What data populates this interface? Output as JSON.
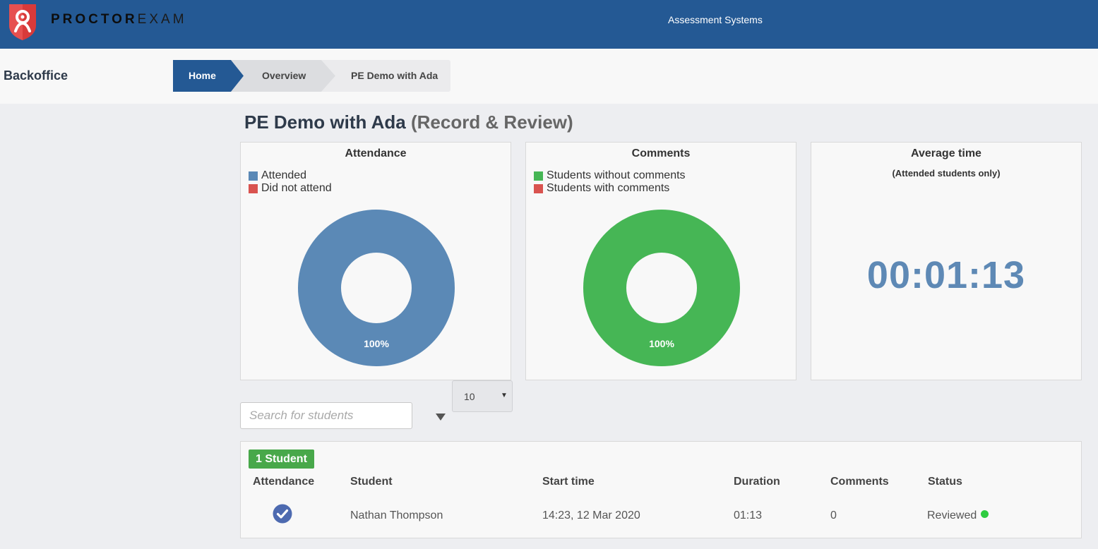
{
  "brand": {
    "name_bold": "PROCTOR",
    "name_light": "EXAM",
    "logo_color": "#d83a3a"
  },
  "header": {
    "organization": "Assessment Systems"
  },
  "nav": {
    "section": "Backoffice",
    "breadcrumb": [
      "Home",
      "Overview",
      "PE Demo with Ada"
    ]
  },
  "exam": {
    "title": "PE Demo with Ada",
    "mode": "(Record & Review)"
  },
  "panels": {
    "attendance": {
      "title": "Attendance",
      "legend": [
        {
          "label": "Attended",
          "color": "#5b89b6"
        },
        {
          "label": "Did not attend",
          "color": "#d9534f"
        }
      ],
      "donut_label": "100%",
      "attended_fraction": 1.0
    },
    "comments": {
      "title": "Comments",
      "legend": [
        {
          "label": "Students without comments",
          "color": "#46b655"
        },
        {
          "label": "Students with comments",
          "color": "#d9534f"
        }
      ],
      "donut_label": "100%",
      "without_comments_fraction": 1.0
    },
    "average_time": {
      "title": "Average time",
      "subtitle": "(Attended students only)",
      "value": "00:01:13"
    }
  },
  "controls": {
    "search_placeholder": "Search for students",
    "page_size": "10",
    "page_size_caret": "▼"
  },
  "table": {
    "count_badge": "1 Student",
    "columns": [
      "Attendance",
      "Student",
      "Start time",
      "Duration",
      "Comments",
      "Status"
    ],
    "rows": [
      {
        "attended": true,
        "student": "Nathan Thompson",
        "start_time": "14:23, 12 Mar 2020",
        "duration": "01:13",
        "comments": "0",
        "status": "Reviewed",
        "status_color": "#2ecc40"
      }
    ]
  }
}
